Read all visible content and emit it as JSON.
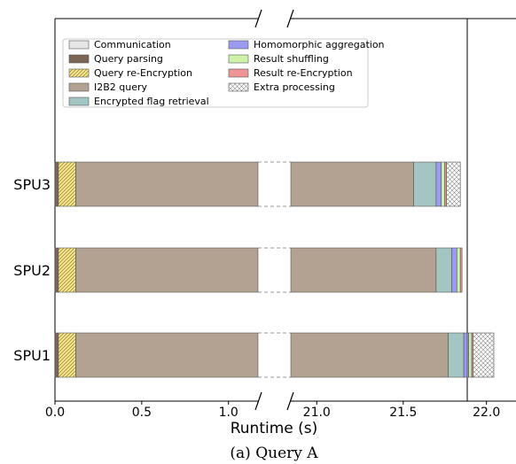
{
  "caption": "(a) Query A",
  "chart_data": {
    "type": "bar",
    "orientation": "horizontal",
    "stacked": true,
    "broken_axis": true,
    "title": "",
    "xlabel": "Runtime (s)",
    "ylabel": "",
    "categories": [
      "SPU3",
      "SPU2",
      "SPU1"
    ],
    "x_segments": [
      {
        "range": [
          0.0,
          1.17
        ],
        "ticks": [
          0.0,
          0.5,
          1.0
        ],
        "tick_labels": [
          "0.0",
          "0.5",
          "1.0"
        ]
      },
      {
        "range": [
          20.85,
          21.87
        ],
        "ticks": [
          21.0,
          21.5
        ],
        "tick_labels": [
          "21.0",
          "21.5"
        ]
      },
      {
        "range": [
          21.87,
          22.2
        ],
        "ticks": [
          22.0
        ],
        "tick_labels": [
          "22.0"
        ]
      }
    ],
    "legend_position": "top-left",
    "series": [
      {
        "name": "Communication",
        "color": "#e6e6e6",
        "hatch": "none",
        "values": [
          0.0,
          0.0,
          0.0
        ]
      },
      {
        "name": "Query parsing",
        "color": "#7b6554",
        "hatch": "none",
        "values": [
          0.02,
          0.02,
          0.02
        ]
      },
      {
        "name": "Query re-Encryption",
        "color": "#f4e58b",
        "hatch": "diagonal",
        "values": [
          0.1,
          0.1,
          0.1
        ]
      },
      {
        "name": "I2B2 query",
        "color": "#b3a291",
        "hatch": "none",
        "values": [
          21.44,
          21.57,
          21.64
        ]
      },
      {
        "name": "Encrypted flag retrieval",
        "color": "#a4c6c2",
        "hatch": "none",
        "values": [
          0.13,
          0.09,
          0.09
        ]
      },
      {
        "name": "Homomorphic aggregation",
        "color": "#9a9af0",
        "hatch": "none",
        "values": [
          0.03,
          0.03,
          0.03
        ]
      },
      {
        "name": "Result shuffling",
        "color": "#ccf3a8",
        "hatch": "none",
        "values": [
          0.02,
          0.02,
          0.02
        ]
      },
      {
        "name": "Result re-Encryption",
        "color": "#ee9494",
        "hatch": "none",
        "values": [
          0.01,
          0.01,
          0.01
        ]
      },
      {
        "name": "Extra processing",
        "color": "#f0f0f0",
        "hatch": "crosshatch",
        "values": [
          0.08,
          0.0,
          0.14
        ]
      }
    ]
  }
}
